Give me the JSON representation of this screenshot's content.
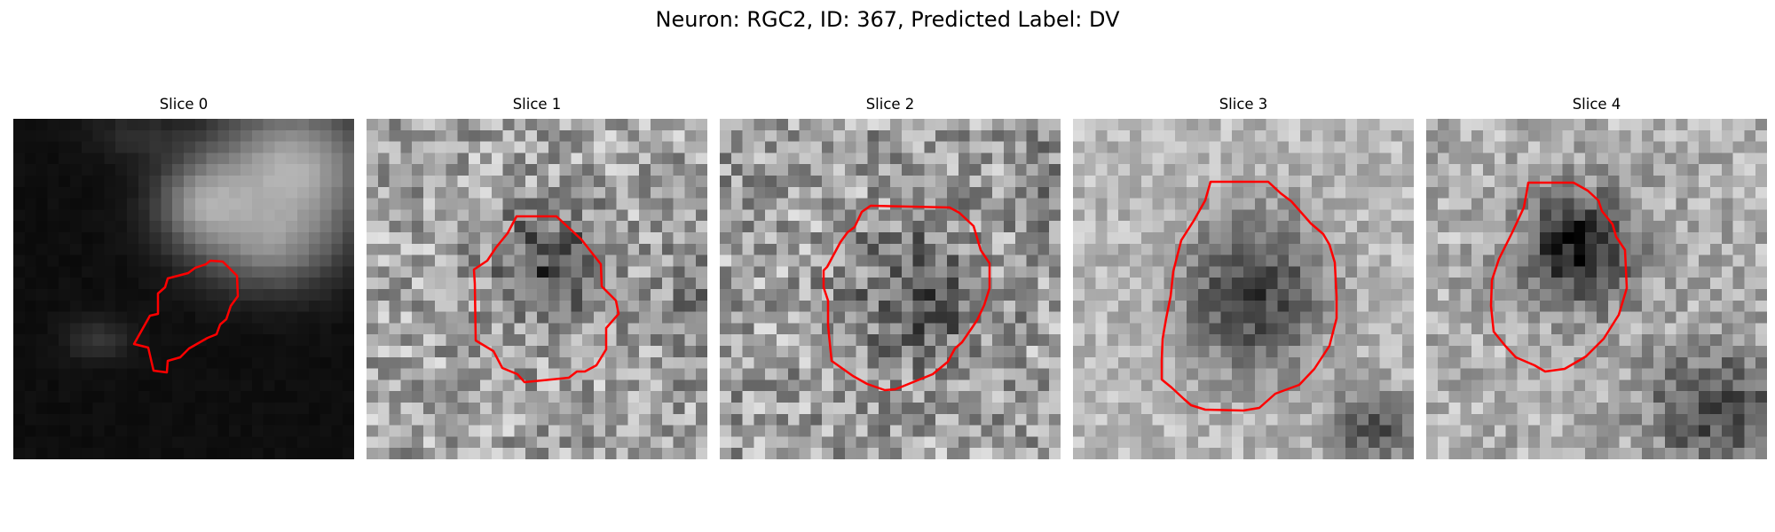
{
  "figure": {
    "title": "Neuron: RGC2, ID: 367, Predicted Label: DV"
  },
  "panels": [
    {
      "title": "Slice 0"
    },
    {
      "title": "Slice 1"
    },
    {
      "title": "Slice 2"
    },
    {
      "title": "Slice 3"
    },
    {
      "title": "Slice 4"
    }
  ],
  "colors": {
    "contour": "#ff0000",
    "background": "#ffffff"
  }
}
